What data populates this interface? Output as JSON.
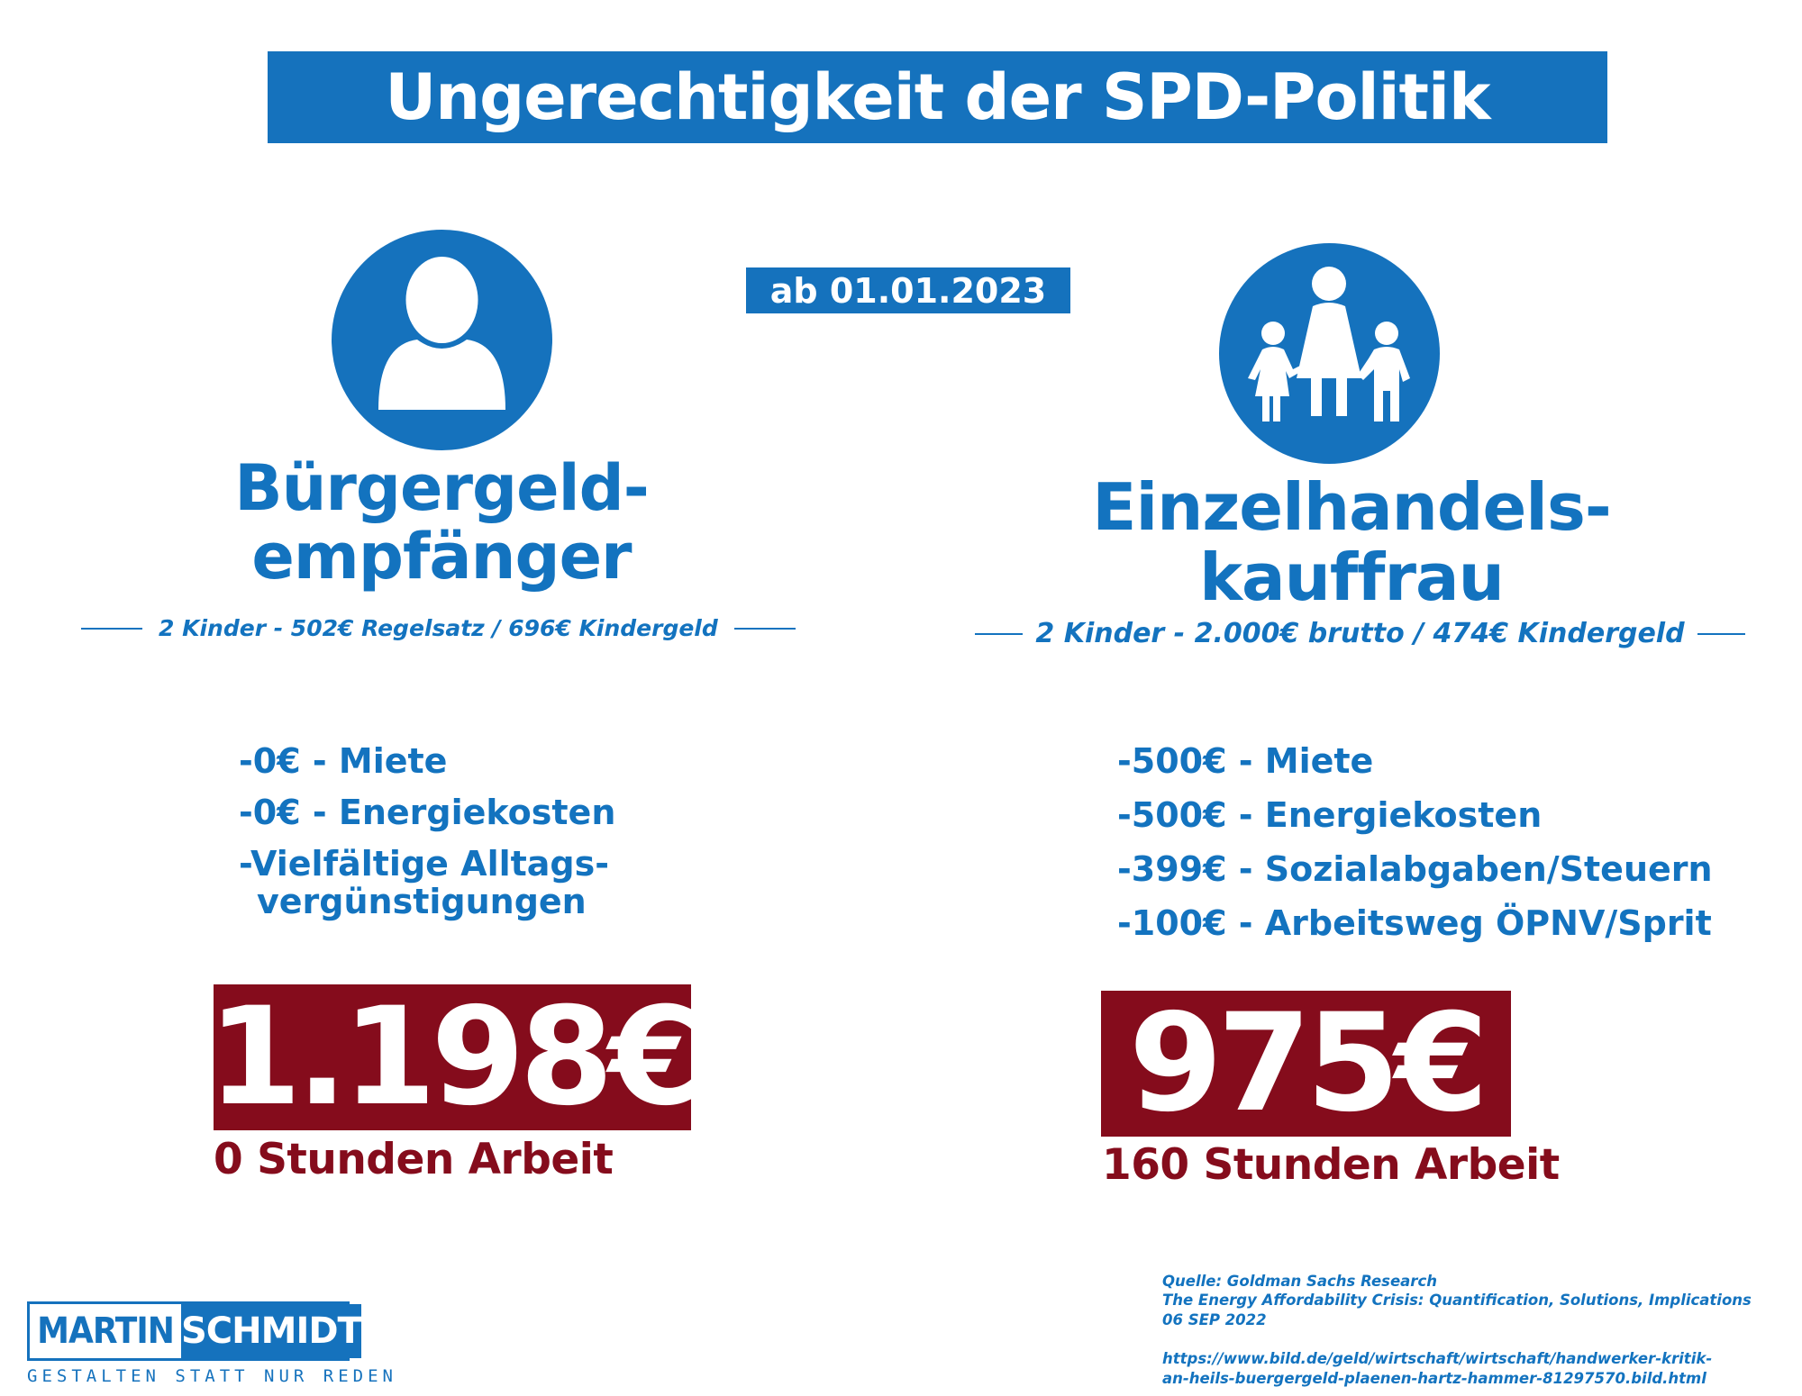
{
  "title": "Ungerechtigkeit der SPD-Politik",
  "date_badge": "ab 01.01.2023",
  "colors": {
    "blue": "#1572bd",
    "red": "#850c1c"
  },
  "left": {
    "icon": "person-icon",
    "heading_line1": "Bürgergeld-",
    "heading_line2": "empfänger",
    "subline": "2 Kinder - 502€ Regelsatz / 696€ Kindergeld",
    "items": [
      "-0€ - Miete",
      "-0€ - Energiekosten",
      "-Vielfältige Alltags-",
      "vergünstigungen"
    ],
    "amount": "1.198€",
    "hours": "0 Stunden Arbeit"
  },
  "right": {
    "icon": "family-icon",
    "heading_line1": "Einzelhandels-",
    "heading_line2": "kauffrau",
    "subline": "2 Kinder - 2.000€ brutto / 474€ Kindergeld",
    "items": [
      "-500€ - Miete",
      "-500€ - Energiekosten",
      "-399€ - Sozialabgaben/Steuern",
      "-100€ - Arbeitsweg ÖPNV/Sprit"
    ],
    "amount": "975€",
    "hours": "160 Stunden Arbeit"
  },
  "logo": {
    "first": "MARTIN",
    "last": "SCHMIDT",
    "tagline": "GESTALTEN STATT NUR REDEN"
  },
  "source": {
    "line1": "Quelle: Goldman Sachs Research",
    "line2": "The Energy Affordability Crisis: Quantification, Solutions, Implications",
    "line3": "06 SEP 2022",
    "url_line1": "https://www.bild.de/geld/wirtschaft/wirtschaft/handwerker-kritik-",
    "url_line2": "an-heils-buergergeld-plaenen-hartz-hammer-81297570.bild.html"
  }
}
